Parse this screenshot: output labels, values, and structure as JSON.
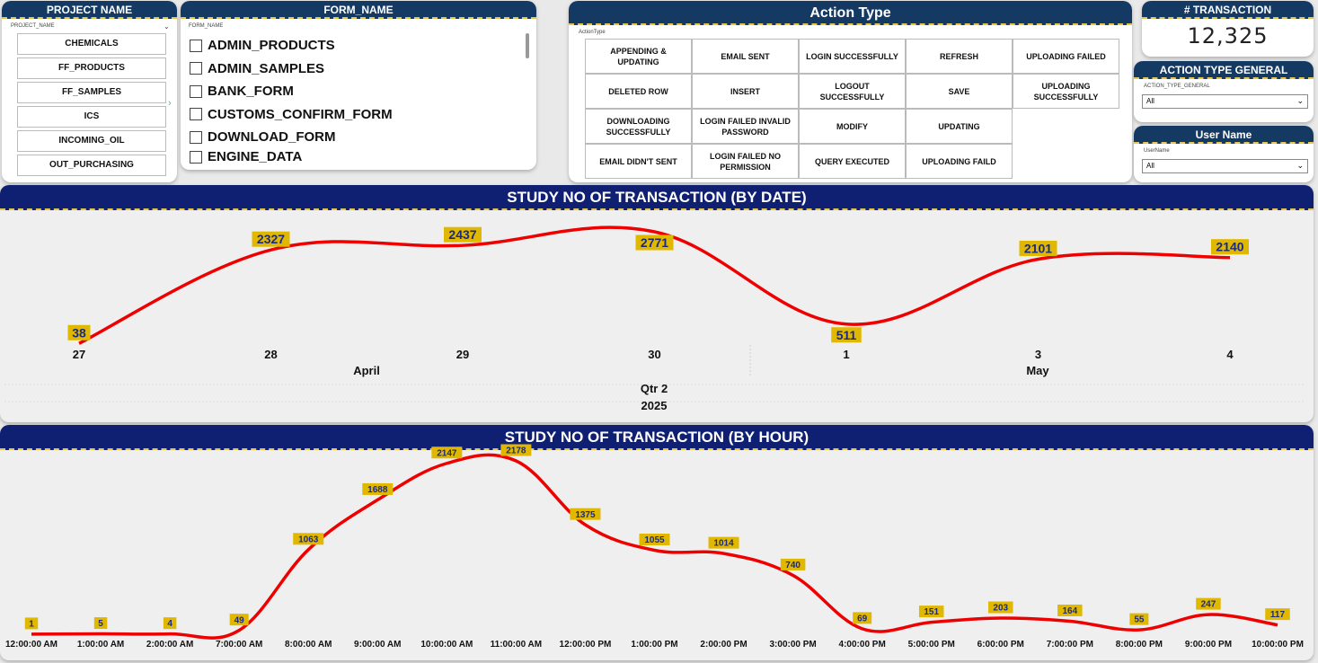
{
  "project": {
    "title": "PROJECT NAME",
    "field_label": "PROJECT_NAME",
    "items": [
      "CHEMICALS",
      "FF_PRODUCTS",
      "FF_SAMPLES",
      "ICS",
      "INCOMING_OIL",
      "OUT_PURCHASING"
    ]
  },
  "form": {
    "title": "FORM_NAME",
    "field_label": "FORM_NAME",
    "items": [
      "ADMIN_PRODUCTS",
      "ADMIN_SAMPLES",
      "BANK_FORM",
      "CUSTOMS_CONFIRM_FORM",
      "DOWNLOAD_FORM",
      "ENGINE_DATA"
    ]
  },
  "action": {
    "title": "Action Type",
    "field_label": "ActionType",
    "items": [
      "APPENDING & UPDATING",
      "EMAIL SENT",
      "LOGIN SUCCESSFULLY",
      "REFRESH",
      "UPLOADING FAILED",
      "DELETED ROW",
      "INSERT",
      "LOGOUT SUCCESSFULLY",
      "SAVE",
      "UPLOADING SUCCESSFULLY",
      "DOWNLOADING SUCCESSFULLY",
      "LOGIN FAILED INVALID PASSWORD",
      "MODIFY",
      "UPDATING",
      "EMAIL DIDN'T SENT",
      "LOGIN FAILED NO PERMISSION",
      "QUERY EXECUTED",
      "UPLOADING FAILD"
    ]
  },
  "kpi": {
    "title": "# TRANSACTION",
    "value": "12,325"
  },
  "action_general": {
    "title": "ACTION TYPE GENERAL",
    "field_label": "ACTION_TYPE_GENERAL",
    "selected": "All"
  },
  "user": {
    "title": "User Name",
    "field_label": "UserName",
    "selected": "All"
  },
  "chart_data": [
    {
      "type": "line",
      "title": "STUDY NO OF TRANSACTION (BY DATE)",
      "categories": [
        "27",
        "28",
        "29",
        "30",
        "1",
        "3",
        "4"
      ],
      "values": [
        38,
        2327,
        2437,
        2771,
        511,
        2101,
        2140
      ],
      "x_groups": [
        {
          "label": "April",
          "span": [
            0,
            3
          ]
        },
        {
          "label": "May",
          "span": [
            4,
            6
          ]
        }
      ],
      "quarter": "Qtr 2",
      "year": "2025"
    },
    {
      "type": "line",
      "title": "STUDY NO OF TRANSACTION (BY HOUR)",
      "categories": [
        "12:00:00 AM",
        "1:00:00 AM",
        "2:00:00 AM",
        "7:00:00 AM",
        "8:00:00 AM",
        "9:00:00 AM",
        "10:00:00 AM",
        "11:00:00 AM",
        "12:00:00 PM",
        "1:00:00 PM",
        "2:00:00 PM",
        "3:00:00 PM",
        "4:00:00 PM",
        "5:00:00 PM",
        "6:00:00 PM",
        "7:00:00 PM",
        "8:00:00 PM",
        "9:00:00 PM",
        "10:00:00 PM"
      ],
      "values": [
        1,
        5,
        4,
        49,
        1063,
        1688,
        2147,
        2178,
        1375,
        1055,
        1014,
        740,
        69,
        151,
        203,
        164,
        55,
        247,
        117
      ]
    }
  ],
  "colors": {
    "line": "#ee0000",
    "label_bg": "#e0b800",
    "label_text": "#1b2a80",
    "header_dark": "#143a63",
    "panel_header": "#0f1f72"
  }
}
